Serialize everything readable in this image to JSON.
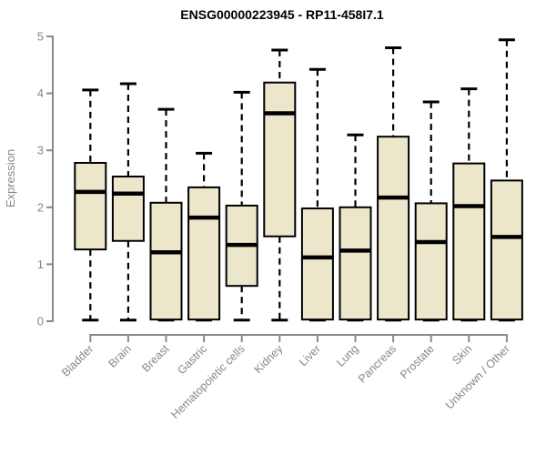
{
  "chart_data": {
    "type": "boxplot",
    "title": "ENSG00000223945 - RP11-458I7.1",
    "ylabel": "Expression",
    "xlabel": "",
    "ylim": [
      0,
      5
    ],
    "yticks": [
      0,
      1,
      2,
      3,
      4,
      5
    ],
    "grid": "off",
    "legend": "none",
    "categories": [
      "Bladder",
      "Brain",
      "Breast",
      "Gastric",
      "Hematopoietic cells",
      "Kidney",
      "Liver",
      "Lung",
      "Pancreas",
      "Prostate",
      "Skin",
      "Unknown / Other"
    ],
    "boxes": [
      {
        "category": "Bladder",
        "low": 0.02,
        "q1": 1.26,
        "median": 2.27,
        "q3": 2.78,
        "high": 4.06
      },
      {
        "category": "Brain",
        "low": 0.02,
        "q1": 1.41,
        "median": 2.24,
        "q3": 2.54,
        "high": 4.17
      },
      {
        "category": "Breast",
        "low": 0.02,
        "q1": 0.03,
        "median": 1.21,
        "q3": 2.08,
        "high": 3.72
      },
      {
        "category": "Gastric",
        "low": 0.02,
        "q1": 0.03,
        "median": 1.82,
        "q3": 2.35,
        "high": 2.95
      },
      {
        "category": "Hematopoietic cells",
        "low": 0.02,
        "q1": 0.62,
        "median": 1.34,
        "q3": 2.03,
        "high": 4.02
      },
      {
        "category": "Kidney",
        "low": 0.02,
        "q1": 1.49,
        "median": 3.65,
        "q3": 4.19,
        "high": 4.76
      },
      {
        "category": "Liver",
        "low": 0.02,
        "q1": 0.03,
        "median": 1.12,
        "q3": 1.98,
        "high": 4.42
      },
      {
        "category": "Lung",
        "low": 0.02,
        "q1": 0.03,
        "median": 1.24,
        "q3": 2.0,
        "high": 3.27
      },
      {
        "category": "Pancreas",
        "low": 0.02,
        "q1": 0.03,
        "median": 2.17,
        "q3": 3.24,
        "high": 4.8
      },
      {
        "category": "Prostate",
        "low": 0.02,
        "q1": 0.03,
        "median": 1.39,
        "q3": 2.07,
        "high": 3.85
      },
      {
        "category": "Skin",
        "low": 0.02,
        "q1": 0.03,
        "median": 2.02,
        "q3": 2.77,
        "high": 4.08
      },
      {
        "category": "Unknown / Other",
        "low": 0.02,
        "q1": 0.03,
        "median": 1.48,
        "q3": 2.47,
        "high": 4.94
      }
    ],
    "colors": {
      "box_fill": "#ece7cb",
      "box_border": "#000000",
      "median": "#000000",
      "whisker": "#000000",
      "axis": "#898989",
      "tick_label": "#878787",
      "title": "#000000",
      "background": "#ffffff"
    }
  }
}
